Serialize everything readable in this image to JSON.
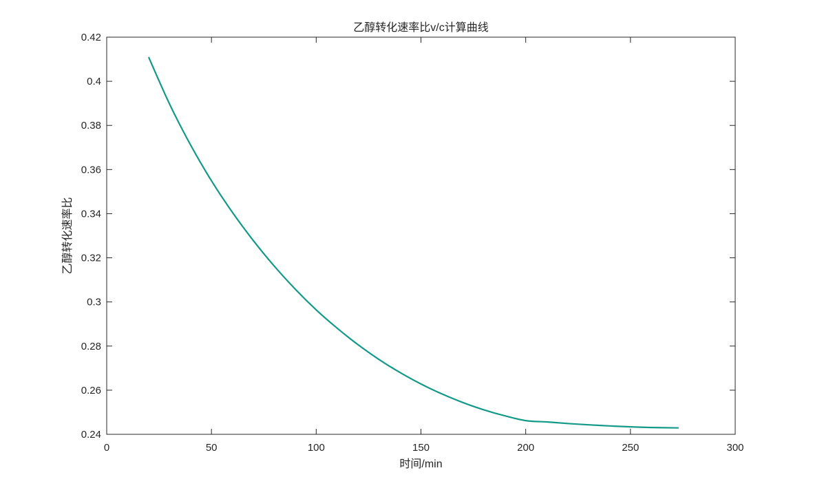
{
  "chart_data": {
    "type": "line",
    "title": "乙醇转化速率比v/c计算曲线",
    "xlabel": "时间/min",
    "ylabel": "乙醇转化速率比",
    "xlim": [
      0,
      300
    ],
    "ylim": [
      0.24,
      0.42
    ],
    "x_ticks": [
      0,
      50,
      100,
      150,
      200,
      250,
      300
    ],
    "y_ticks": [
      0.24,
      0.26,
      0.28,
      0.3,
      0.32,
      0.34,
      0.36,
      0.38,
      0.4,
      0.42
    ],
    "grid": false,
    "series": [
      {
        "color": "#129988",
        "x": [
          20,
          30,
          40,
          50,
          60,
          70,
          80,
          90,
          100,
          110,
          120,
          130,
          140,
          150,
          160,
          170,
          180,
          190,
          200,
          210,
          220,
          230,
          240,
          250,
          260,
          273
        ],
        "y": [
          0.411,
          0.3897,
          0.3712,
          0.3549,
          0.3406,
          0.3278,
          0.3162,
          0.3058,
          0.2964,
          0.2881,
          0.2806,
          0.2739,
          0.268,
          0.2628,
          0.2583,
          0.2544,
          0.2511,
          0.2484,
          0.2462,
          0.2456,
          0.2449,
          0.2443,
          0.2438,
          0.2434,
          0.2431,
          0.2429
        ]
      }
    ]
  }
}
